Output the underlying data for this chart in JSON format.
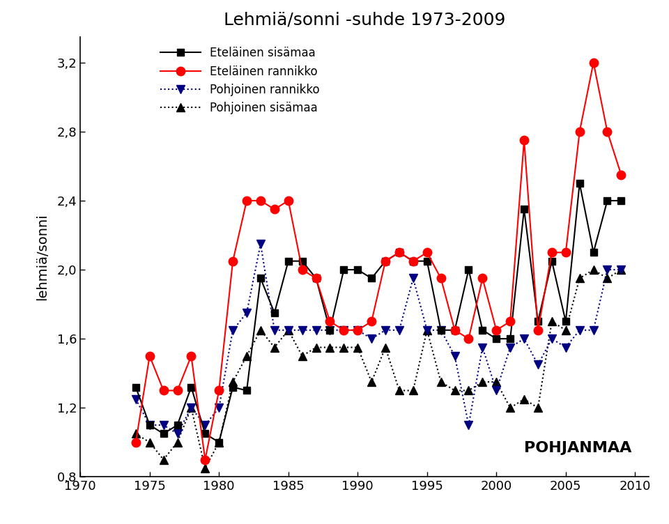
{
  "title": "Lehmiä/sonni -suhde 1973-2009",
  "ylabel": "lehmiä/sonni",
  "annotation": "POHJANMAA",
  "xlim": [
    1970,
    2011
  ],
  "ylim": [
    0.8,
    3.35
  ],
  "yticks": [
    0.8,
    1.2,
    1.6,
    2.0,
    2.4,
    2.8,
    3.2
  ],
  "xticks": [
    1970,
    1975,
    1980,
    1985,
    1990,
    1995,
    2000,
    2005,
    2010
  ],
  "series": {
    "Etelainen_sisamaa": {
      "label": "Eteläinen sisämaa",
      "color": "#000000",
      "linestyle": "-",
      "marker": "s",
      "markersize": 7,
      "years": [
        1974,
        1975,
        1976,
        1977,
        1978,
        1979,
        1980,
        1981,
        1982,
        1983,
        1984,
        1985,
        1986,
        1987,
        1988,
        1989,
        1990,
        1991,
        1992,
        1993,
        1994,
        1995,
        1996,
        1997,
        1998,
        1999,
        2000,
        2001,
        2002,
        2003,
        2004,
        2005,
        2006,
        2007,
        2008,
        2009
      ],
      "values": [
        1.32,
        1.1,
        1.05,
        1.1,
        1.32,
        1.05,
        1.0,
        1.32,
        1.3,
        1.95,
        1.75,
        2.05,
        2.05,
        1.95,
        1.65,
        2.0,
        2.0,
        1.95,
        2.05,
        2.1,
        2.05,
        2.05,
        1.65,
        1.65,
        2.0,
        1.65,
        1.6,
        1.6,
        2.35,
        1.7,
        2.05,
        1.7,
        2.5,
        2.1,
        2.4,
        2.4
      ]
    },
    "Etelainen_rannikko": {
      "label": "Eteläinen rannikko",
      "color": "#ff0000",
      "linestyle": "-",
      "marker": "o",
      "markersize": 9,
      "years": [
        1974,
        1975,
        1976,
        1977,
        1978,
        1979,
        1980,
        1981,
        1982,
        1983,
        1984,
        1985,
        1986,
        1987,
        1988,
        1989,
        1990,
        1991,
        1992,
        1993,
        1994,
        1995,
        1996,
        1997,
        1998,
        1999,
        2000,
        2001,
        2002,
        2003,
        2004,
        2005,
        2006,
        2007,
        2008,
        2009
      ],
      "values": [
        1.0,
        1.5,
        1.3,
        1.3,
        1.5,
        0.9,
        1.3,
        2.05,
        2.4,
        2.4,
        2.35,
        2.4,
        2.0,
        1.95,
        1.7,
        1.65,
        1.65,
        1.7,
        2.05,
        2.1,
        2.05,
        2.1,
        1.95,
        1.65,
        1.6,
        1.95,
        1.65,
        1.7,
        2.75,
        1.65,
        2.1,
        2.1,
        2.8,
        3.2,
        2.8,
        2.55
      ]
    },
    "Pohjoinen_rannikko": {
      "label": "Pohjoinen rannikko",
      "color": "#000080",
      "linestyle": ":",
      "marker": "v",
      "markersize": 8,
      "years": [
        1974,
        1975,
        1976,
        1977,
        1978,
        1979,
        1980,
        1981,
        1982,
        1983,
        1984,
        1985,
        1986,
        1987,
        1988,
        1989,
        1990,
        1991,
        1992,
        1993,
        1994,
        1995,
        1996,
        1997,
        1998,
        1999,
        2000,
        2001,
        2002,
        2003,
        2004,
        2005,
        2006,
        2007,
        2008,
        2009
      ],
      "values": [
        1.25,
        1.1,
        1.1,
        1.05,
        1.2,
        1.1,
        1.2,
        1.65,
        1.75,
        2.15,
        1.65,
        1.65,
        1.65,
        1.65,
        1.65,
        1.65,
        1.65,
        1.6,
        1.65,
        1.65,
        1.95,
        1.65,
        1.65,
        1.5,
        1.1,
        1.55,
        1.3,
        1.55,
        1.6,
        1.45,
        1.6,
        1.55,
        1.65,
        1.65,
        2.0,
        2.0
      ]
    },
    "Pohjoinen_sisamaa": {
      "label": "Pohjoinen sisämaa",
      "color": "#000000",
      "linestyle": ":",
      "marker": "^",
      "markersize": 8,
      "years": [
        1974,
        1975,
        1976,
        1977,
        1978,
        1979,
        1980,
        1981,
        1982,
        1983,
        1984,
        1985,
        1986,
        1987,
        1988,
        1989,
        1990,
        1991,
        1992,
        1993,
        1994,
        1995,
        1996,
        1997,
        1998,
        1999,
        2000,
        2001,
        2002,
        2003,
        2004,
        2005,
        2006,
        2007,
        2008,
        2009
      ],
      "values": [
        1.05,
        1.0,
        0.9,
        1.0,
        1.2,
        0.85,
        1.0,
        1.35,
        1.5,
        1.65,
        1.55,
        1.65,
        1.5,
        1.55,
        1.55,
        1.55,
        1.55,
        1.35,
        1.55,
        1.3,
        1.3,
        1.65,
        1.35,
        1.3,
        1.3,
        1.35,
        1.35,
        1.2,
        1.25,
        1.2,
        1.7,
        1.65,
        1.95,
        2.0,
        1.95,
        2.0
      ]
    }
  }
}
